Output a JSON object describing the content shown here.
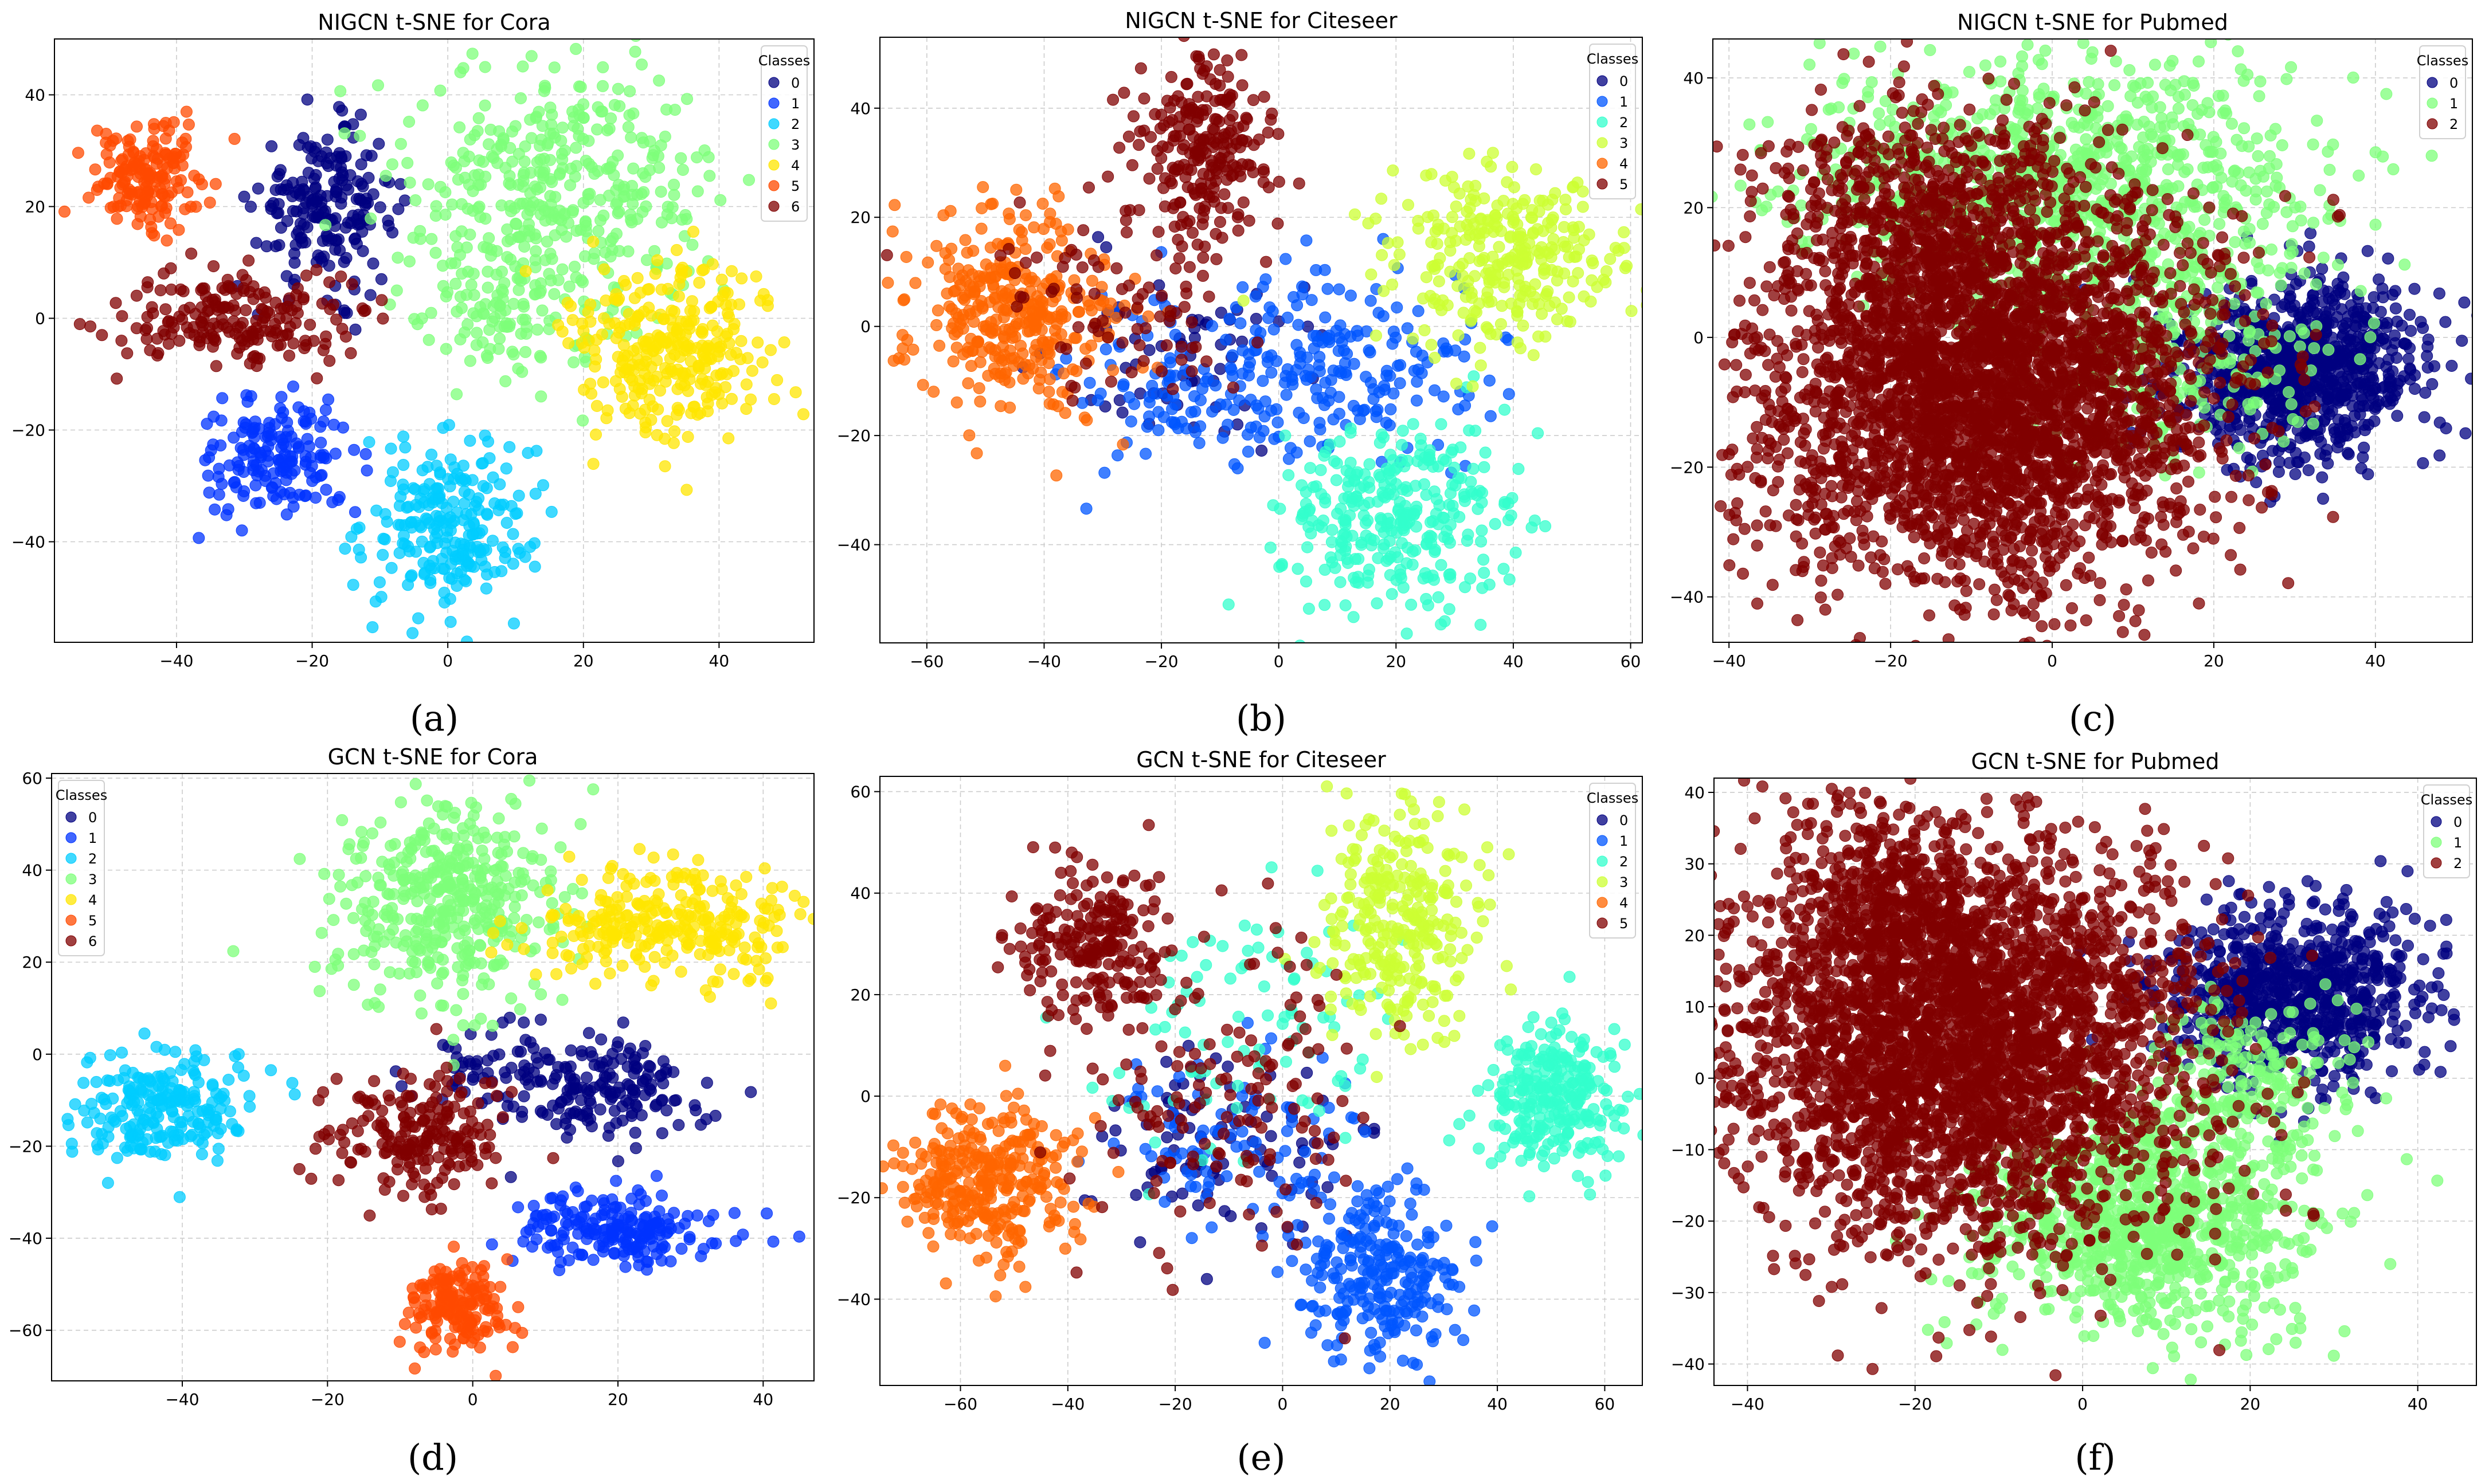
{
  "figure": {
    "panel_count": 6,
    "captions": [
      "(a)",
      "(b)",
      "(c)",
      "(d)",
      "(e)",
      "(f)"
    ]
  },
  "chart_data": [
    {
      "panel_id": "a",
      "type": "scatter",
      "title": "NIGCN t-SNE for Cora",
      "xlabel": "",
      "ylabel": "",
      "xlim": [
        -58,
        54
      ],
      "ylim": [
        -58,
        50
      ],
      "xticks": [
        -40,
        -20,
        0,
        20,
        40
      ],
      "yticks": [
        -40,
        -20,
        0,
        20,
        40
      ],
      "grid": true,
      "legend_title": "Classes",
      "legend_position": "top-right",
      "series": [
        {
          "name": "0",
          "color": "#000080",
          "clusters": [
            {
              "cx": -18,
              "cy": 20,
              "sx": 5,
              "sy": 7,
              "n": 200
            }
          ]
        },
        {
          "name": "1",
          "color": "#0033ff",
          "clusters": [
            {
              "cx": -25,
              "cy": -25,
              "sx": 6,
              "sy": 5,
              "n": 170
            }
          ]
        },
        {
          "name": "2",
          "color": "#00ccff",
          "clusters": [
            {
              "cx": 0,
              "cy": -37,
              "sx": 6,
              "sy": 8,
              "n": 240
            }
          ]
        },
        {
          "name": "3",
          "color": "#7dff7a",
          "clusters": [
            {
              "cx": 17,
              "cy": 22,
              "sx": 11,
              "sy": 12,
              "n": 420
            },
            {
              "cx": 8,
              "cy": 0,
              "sx": 6,
              "sy": 6,
              "n": 80
            }
          ]
        },
        {
          "name": "4",
          "color": "#ffe600",
          "clusters": [
            {
              "cx": 33,
              "cy": -5,
              "sx": 8,
              "sy": 8,
              "n": 300
            }
          ]
        },
        {
          "name": "5",
          "color": "#ff4a00",
          "clusters": [
            {
              "cx": -44,
              "cy": 25,
              "sx": 4,
              "sy": 5,
              "n": 170
            }
          ]
        },
        {
          "name": "6",
          "color": "#800000",
          "clusters": [
            {
              "cx": -32,
              "cy": 0,
              "sx": 9,
              "sy": 4,
              "n": 200
            }
          ]
        }
      ]
    },
    {
      "panel_id": "b",
      "type": "scatter",
      "title": "NIGCN t-SNE for Citeseer",
      "xlabel": "",
      "ylabel": "",
      "xlim": [
        -68,
        62
      ],
      "ylim": [
        -58,
        53
      ],
      "xticks": [
        -60,
        -40,
        -20,
        0,
        20,
        40,
        60
      ],
      "yticks": [
        -40,
        -20,
        0,
        20,
        40
      ],
      "grid": true,
      "legend_title": "Classes",
      "legend_position": "top-right",
      "series": [
        {
          "name": "0",
          "color": "#000080",
          "clusters": [
            {
              "cx": -15,
              "cy": -5,
              "sx": 12,
              "sy": 10,
              "n": 60
            }
          ]
        },
        {
          "name": "1",
          "color": "#0055ff",
          "clusters": [
            {
              "cx": 10,
              "cy": -8,
              "sx": 12,
              "sy": 9,
              "n": 220
            },
            {
              "cx": -20,
              "cy": -12,
              "sx": 8,
              "sy": 8,
              "n": 80
            }
          ]
        },
        {
          "name": "2",
          "color": "#33ffcc",
          "clusters": [
            {
              "cx": 20,
              "cy": -35,
              "sx": 10,
              "sy": 8,
              "n": 320
            }
          ]
        },
        {
          "name": "3",
          "color": "#ccff33",
          "clusters": [
            {
              "cx": 38,
              "cy": 12,
              "sx": 10,
              "sy": 8,
              "n": 300
            }
          ]
        },
        {
          "name": "4",
          "color": "#ff6600",
          "clusters": [
            {
              "cx": -45,
              "cy": 3,
              "sx": 9,
              "sy": 9,
              "n": 360
            }
          ]
        },
        {
          "name": "5",
          "color": "#800000",
          "clusters": [
            {
              "cx": -13,
              "cy": 33,
              "sx": 6,
              "sy": 9,
              "n": 230
            },
            {
              "cx": -25,
              "cy": 5,
              "sx": 12,
              "sy": 10,
              "n": 90
            }
          ]
        }
      ]
    },
    {
      "panel_id": "c",
      "type": "scatter",
      "title": "NIGCN t-SNE for Pubmed",
      "xlabel": "",
      "ylabel": "",
      "xlim": [
        -42,
        52
      ],
      "ylim": [
        -47,
        46
      ],
      "xticks": [
        -40,
        -20,
        0,
        20,
        40
      ],
      "yticks": [
        -40,
        -20,
        0,
        20,
        40
      ],
      "grid": true,
      "legend_title": "Classes",
      "legend_position": "top-right",
      "series": [
        {
          "name": "0",
          "color": "#000080",
          "clusters": [
            {
              "cx": 30,
              "cy": -5,
              "sx": 8,
              "sy": 7,
              "n": 900
            }
          ]
        },
        {
          "name": "1",
          "color": "#7dff7a",
          "clusters": [
            {
              "cx": 0,
              "cy": 25,
              "sx": 16,
              "sy": 9,
              "n": 900
            },
            {
              "cx": 15,
              "cy": 0,
              "sx": 10,
              "sy": 10,
              "n": 300
            }
          ]
        },
        {
          "name": "2",
          "color": "#800000",
          "clusters": [
            {
              "cx": -8,
              "cy": -8,
              "sx": 14,
              "sy": 15,
              "n": 3200
            },
            {
              "cx": -15,
              "cy": 20,
              "sx": 10,
              "sy": 8,
              "n": 500
            }
          ]
        }
      ]
    },
    {
      "panel_id": "d",
      "type": "scatter",
      "title": "GCN t-SNE for Cora",
      "xlabel": "",
      "ylabel": "",
      "xlim": [
        -58,
        47
      ],
      "ylim": [
        -71,
        61
      ],
      "xticks": [
        -40,
        -20,
        0,
        20,
        40
      ],
      "yticks": [
        -60,
        -40,
        -20,
        0,
        20,
        40,
        60
      ],
      "grid": true,
      "legend_title": "Classes",
      "legend_position": "top-left",
      "series": [
        {
          "name": "0",
          "color": "#000080",
          "clusters": [
            {
              "cx": 18,
              "cy": -8,
              "sx": 7,
              "sy": 6,
              "n": 160
            },
            {
              "cx": 5,
              "cy": -3,
              "sx": 6,
              "sy": 5,
              "n": 60
            }
          ]
        },
        {
          "name": "1",
          "color": "#0033ff",
          "clusters": [
            {
              "cx": 20,
              "cy": -38,
              "sx": 7,
              "sy": 4,
              "n": 200
            }
          ]
        },
        {
          "name": "2",
          "color": "#00ccff",
          "clusters": [
            {
              "cx": -43,
              "cy": -12,
              "sx": 6,
              "sy": 6,
              "n": 230
            }
          ]
        },
        {
          "name": "3",
          "color": "#7dff7a",
          "clusters": [
            {
              "cx": -3,
              "cy": 33,
              "sx": 8,
              "sy": 11,
              "n": 420
            }
          ]
        },
        {
          "name": "4",
          "color": "#ffe600",
          "clusters": [
            {
              "cx": 27,
              "cy": 28,
              "sx": 9,
              "sy": 6,
              "n": 280
            }
          ]
        },
        {
          "name": "5",
          "color": "#ff4a00",
          "clusters": [
            {
              "cx": -2,
              "cy": -55,
              "sx": 4,
              "sy": 5,
              "n": 170
            }
          ]
        },
        {
          "name": "6",
          "color": "#800000",
          "clusters": [
            {
              "cx": -8,
              "cy": -18,
              "sx": 6,
              "sy": 7,
              "n": 200
            }
          ]
        }
      ]
    },
    {
      "panel_id": "e",
      "type": "scatter",
      "title": "GCN t-SNE for Citeseer",
      "xlabel": "",
      "ylabel": "",
      "xlim": [
        -75,
        67
      ],
      "ylim": [
        -57,
        63
      ],
      "xticks": [
        -60,
        -40,
        -20,
        0,
        20,
        40,
        60
      ],
      "yticks": [
        -40,
        -20,
        0,
        20,
        40,
        60
      ],
      "grid": true,
      "legend_title": "Classes",
      "legend_position": "top-right",
      "series": [
        {
          "name": "0",
          "color": "#000080",
          "clusters": [
            {
              "cx": -10,
              "cy": -10,
              "sx": 12,
              "sy": 10,
              "n": 90
            }
          ]
        },
        {
          "name": "1",
          "color": "#0055ff",
          "clusters": [
            {
              "cx": 18,
              "cy": -35,
              "sx": 8,
              "sy": 9,
              "n": 260
            },
            {
              "cx": -10,
              "cy": -10,
              "sx": 12,
              "sy": 10,
              "n": 90
            }
          ]
        },
        {
          "name": "2",
          "color": "#33ffcc",
          "clusters": [
            {
              "cx": 50,
              "cy": 0,
              "sx": 7,
              "sy": 7,
              "n": 270
            },
            {
              "cx": -5,
              "cy": 15,
              "sx": 15,
              "sy": 12,
              "n": 90
            }
          ]
        },
        {
          "name": "3",
          "color": "#ccff33",
          "clusters": [
            {
              "cx": 22,
              "cy": 35,
              "sx": 7,
              "sy": 12,
              "n": 290
            }
          ]
        },
        {
          "name": "4",
          "color": "#ff6600",
          "clusters": [
            {
              "cx": -55,
              "cy": -17,
              "sx": 8,
              "sy": 7,
              "n": 320
            }
          ]
        },
        {
          "name": "5",
          "color": "#800000",
          "clusters": [
            {
              "cx": -35,
              "cy": 30,
              "sx": 7,
              "sy": 8,
              "n": 220
            },
            {
              "cx": -10,
              "cy": 0,
              "sx": 15,
              "sy": 15,
              "n": 140
            }
          ]
        }
      ]
    },
    {
      "panel_id": "f",
      "type": "scatter",
      "title": "GCN t-SNE for Pubmed",
      "xlabel": "",
      "ylabel": "",
      "xlim": [
        -44,
        47
      ],
      "ylim": [
        -43,
        42
      ],
      "xticks": [
        -40,
        -20,
        0,
        20,
        40
      ],
      "yticks": [
        -40,
        -30,
        -20,
        -10,
        0,
        10,
        20,
        30,
        40
      ],
      "grid": true,
      "legend_title": "Classes",
      "legend_position": "top-right",
      "series": [
        {
          "name": "0",
          "color": "#000080",
          "clusters": [
            {
              "cx": 25,
              "cy": 12,
              "sx": 8,
              "sy": 6,
              "n": 800
            }
          ]
        },
        {
          "name": "1",
          "color": "#7dff7a",
          "clusters": [
            {
              "cx": 8,
              "cy": -20,
              "sx": 10,
              "sy": 8,
              "n": 900
            },
            {
              "cx": 20,
              "cy": 0,
              "sx": 6,
              "sy": 6,
              "n": 200
            }
          ]
        },
        {
          "name": "2",
          "color": "#800000",
          "clusters": [
            {
              "cx": -15,
              "cy": 5,
              "sx": 14,
              "sy": 14,
              "n": 3200
            },
            {
              "cx": -22,
              "cy": 25,
              "sx": 6,
              "sy": 6,
              "n": 300
            }
          ]
        }
      ]
    }
  ]
}
